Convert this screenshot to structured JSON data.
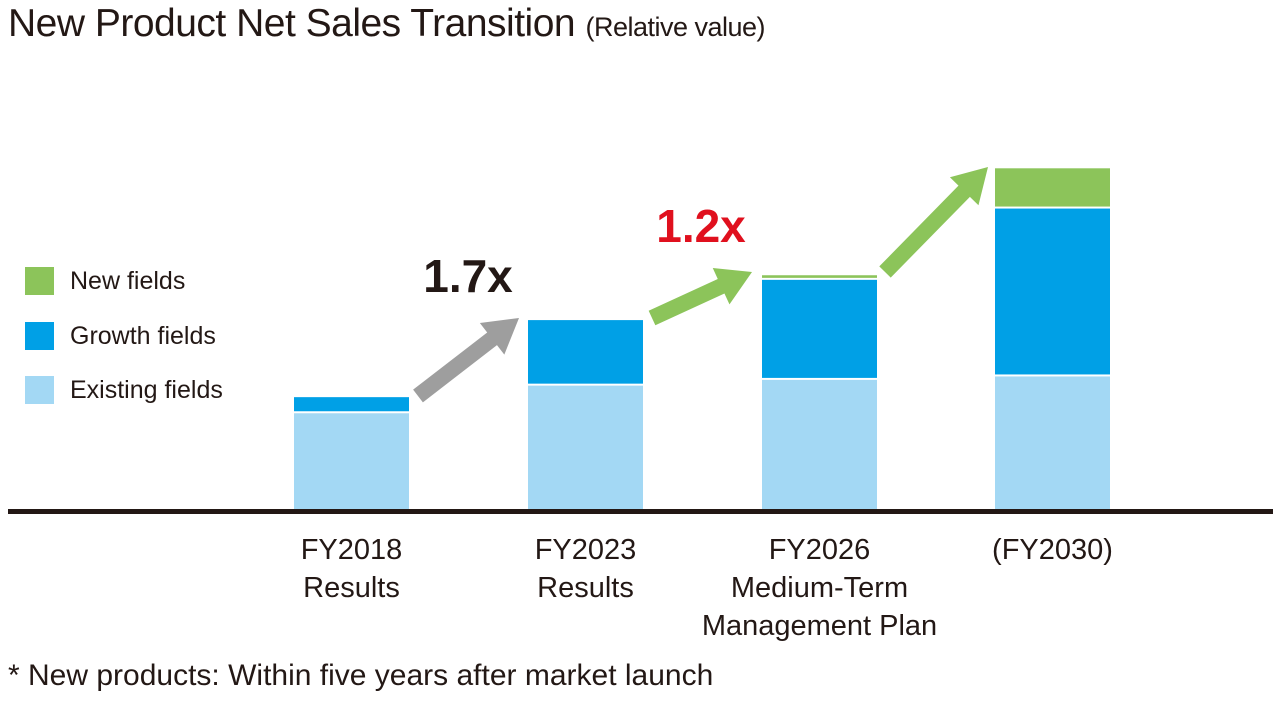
{
  "header": {
    "title": "New Product Net Sales Transition",
    "subtitle": "(Relative value)"
  },
  "footnote": "* New products: Within five years after market launch",
  "colors": {
    "existing": "#a3d8f4",
    "growth": "#00a0e6",
    "new": "#8cc45a",
    "arrow_gray": "#9e9e9e",
    "arrow_green": "#8cc45a",
    "mult_black": "#231815",
    "mult_red": "#e0101e",
    "axis": "#231815"
  },
  "chart_data": {
    "type": "bar",
    "stacked": true,
    "title": "New Product Net Sales Transition (Relative value)",
    "xlabel": "",
    "ylabel": "",
    "ylim": [
      0,
      300
    ],
    "grid": false,
    "legend_position": "left",
    "categories": [
      [
        "FY2018",
        "Results"
      ],
      [
        "FY2023",
        "Results"
      ],
      [
        "FY2026",
        "Medium-Term",
        "Management Plan"
      ],
      [
        "(FY2030)"
      ]
    ],
    "series": [
      {
        "name": "Existing fields",
        "key": "existing",
        "values": [
          85,
          109,
          114,
          117
        ]
      },
      {
        "name": "Growth fields",
        "key": "growth",
        "values": [
          14,
          57,
          87,
          146
        ]
      },
      {
        "name": "New fields",
        "key": "new",
        "values": [
          0,
          0,
          4,
          35
        ]
      }
    ],
    "legend": [
      "New fields",
      "Growth fields",
      "Existing fields"
    ],
    "annotations": [
      {
        "text": "1.7x",
        "from": 0,
        "to": 1,
        "color": "black",
        "arrow": "gray"
      },
      {
        "text": "1.2x",
        "from": 1,
        "to": 2,
        "color": "red",
        "arrow": "green"
      },
      {
        "text": "",
        "from": 2,
        "to": 3,
        "color": "",
        "arrow": "green"
      }
    ]
  }
}
